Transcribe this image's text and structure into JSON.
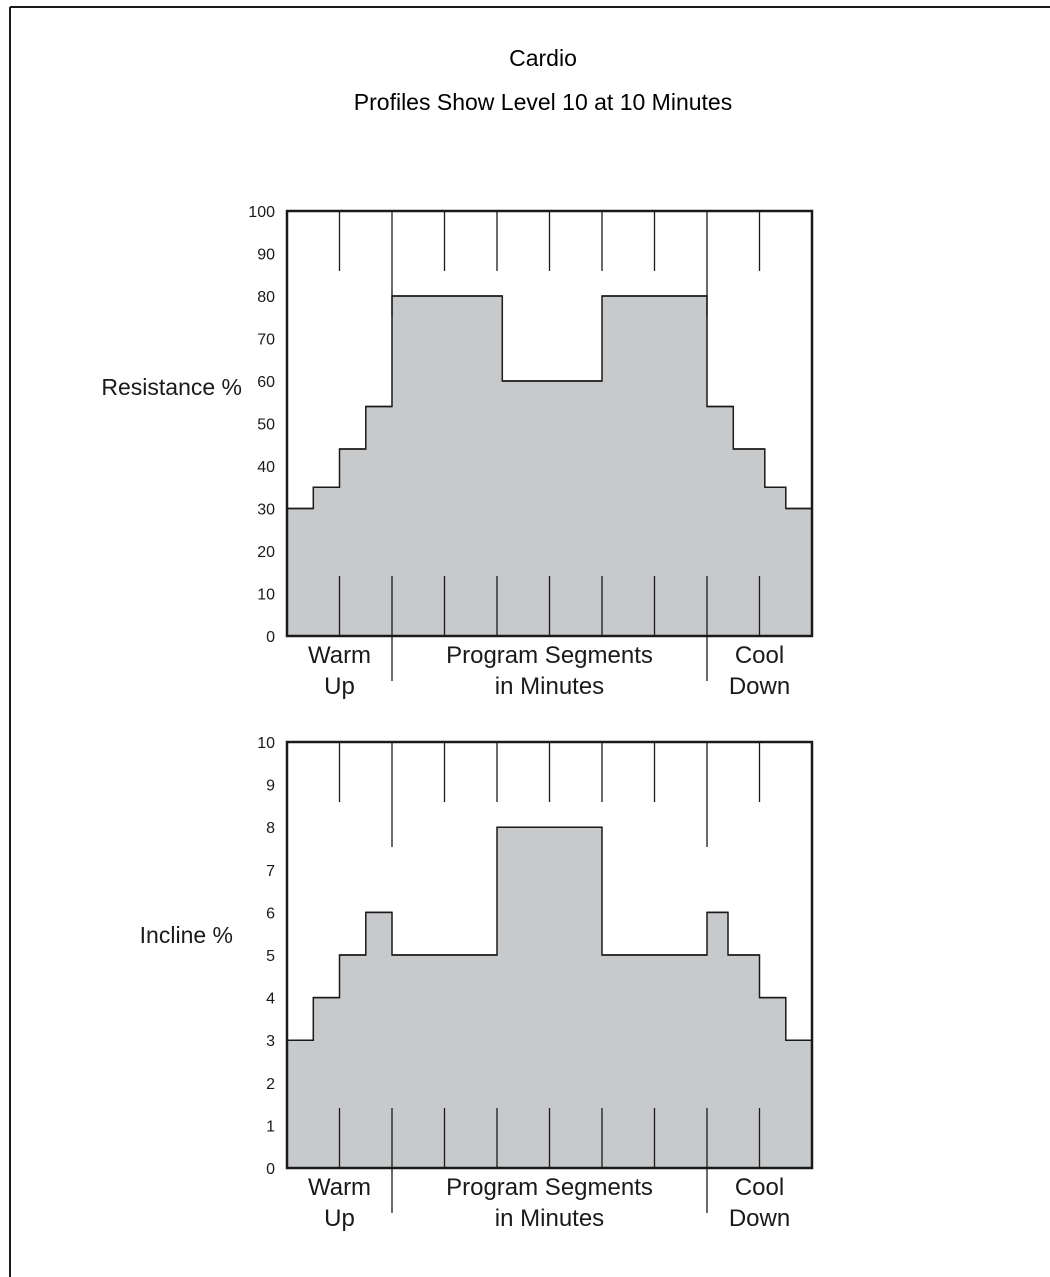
{
  "chart_data": {
    "title": "Cardio",
    "subtitle": "Profiles Show Level 10 at 10 Minutes",
    "fill_color": "#c8c9cb",
    "line_color": "#1a1a1a",
    "x_section_labels": {
      "warm_up": [
        "Warm",
        "Up"
      ],
      "program": [
        "Program Segments",
        "in Minutes"
      ],
      "cool_down": [
        "Cool",
        "Down"
      ]
    },
    "charts": [
      {
        "type": "area",
        "step": true,
        "ylabel": "Resistance %",
        "ylim": [
          0,
          100
        ],
        "yticks": [
          0,
          10,
          20,
          30,
          40,
          50,
          60,
          70,
          80,
          90,
          100
        ],
        "steps": [
          {
            "x0": 0.0,
            "x1": 0.25,
            "y": 30
          },
          {
            "x0": 0.25,
            "x1": 0.5,
            "y": 35
          },
          {
            "x0": 0.5,
            "x1": 0.75,
            "y": 44
          },
          {
            "x0": 0.75,
            "x1": 1.0,
            "y": 54
          },
          {
            "x0": 1.0,
            "x1": 2.05,
            "y": 80
          },
          {
            "x0": 2.05,
            "x1": 3.0,
            "y": 60
          },
          {
            "x0": 3.0,
            "x1": 4.0,
            "y": 80
          },
          {
            "x0": 4.0,
            "x1": 4.25,
            "y": 54
          },
          {
            "x0": 4.25,
            "x1": 4.55,
            "y": 44
          },
          {
            "x0": 4.55,
            "x1": 4.75,
            "y": 35
          },
          {
            "x0": 4.75,
            "x1": 5.0,
            "y": 30
          }
        ]
      },
      {
        "type": "area",
        "step": true,
        "ylabel": "Incline %",
        "ylim": [
          0,
          10
        ],
        "yticks": [
          0,
          1,
          2,
          3,
          4,
          5,
          6,
          7,
          8,
          9,
          10
        ],
        "steps": [
          {
            "x0": 0.0,
            "x1": 0.25,
            "y": 3
          },
          {
            "x0": 0.25,
            "x1": 0.5,
            "y": 4
          },
          {
            "x0": 0.5,
            "x1": 0.75,
            "y": 5
          },
          {
            "x0": 0.75,
            "x1": 1.0,
            "y": 6
          },
          {
            "x0": 1.0,
            "x1": 2.0,
            "y": 5
          },
          {
            "x0": 2.0,
            "x1": 3.0,
            "y": 8
          },
          {
            "x0": 3.0,
            "x1": 4.0,
            "y": 5
          },
          {
            "x0": 4.0,
            "x1": 4.2,
            "y": 6
          },
          {
            "x0": 4.2,
            "x1": 4.5,
            "y": 5
          },
          {
            "x0": 4.5,
            "x1": 4.75,
            "y": 4
          },
          {
            "x0": 4.75,
            "x1": 5.0,
            "y": 3
          }
        ]
      }
    ]
  }
}
